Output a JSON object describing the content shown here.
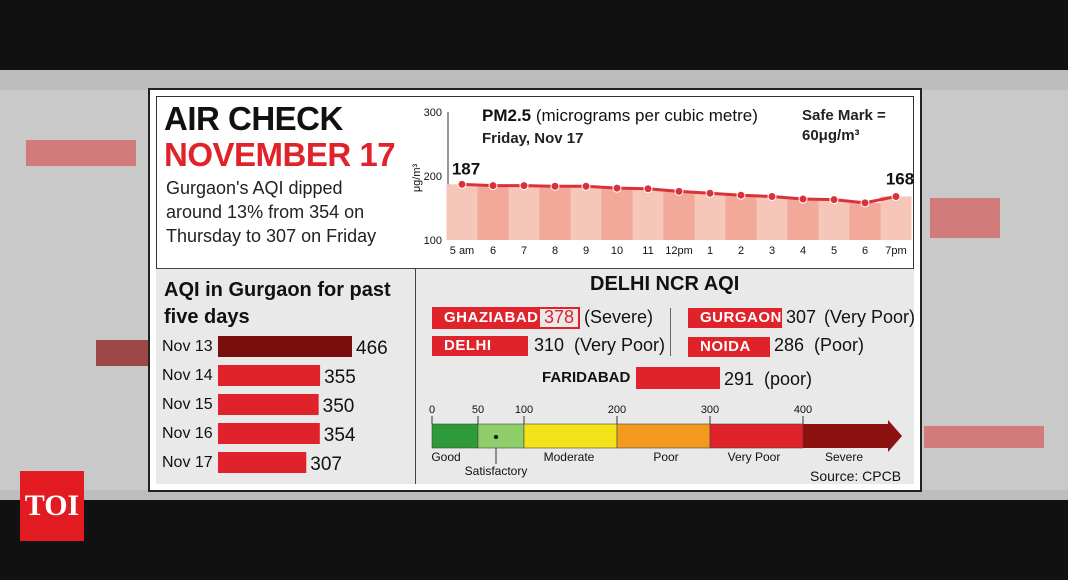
{
  "title_line1": "AIR CHECK",
  "title_line2": "NOVEMBER 17",
  "lead_text": "Gurgaon's AQI dipped around 13% from 354 on Thursday to 307 on Friday",
  "past_title": "AQI in Gurgaon for past five days",
  "pm_title_bold": "PM2.5",
  "pm_title_rest": " (micrograms per cubic metre)",
  "pm_subtitle": "Friday, Nov 17",
  "safe_mark": "Safe Mark = 60μg/m³",
  "ncr_title": "DELHI NCR AQI",
  "source": "Source: CPCB",
  "logo": "TOI",
  "colors": {
    "red": "#e0222a",
    "dark": "#7a0d0d",
    "line": "#d9323a",
    "fillBand": "#f7c6ba"
  },
  "chart_data": [
    {
      "type": "line",
      "title": "PM2.5 (micrograms per cubic metre)",
      "subtitle": "Friday, Nov 17",
      "ylabel": "μg/m³",
      "ylim": [
        100,
        300
      ],
      "yticks": [
        100,
        200,
        300
      ],
      "x": [
        "5 am",
        "6",
        "7",
        "8",
        "9",
        "10",
        "11",
        "12pm",
        "1",
        "2",
        "3",
        "4",
        "5",
        "6",
        "7pm"
      ],
      "values": [
        187,
        185,
        185,
        184,
        184,
        181,
        180,
        176,
        173,
        170,
        168,
        164,
        163,
        158,
        168
      ],
      "labelled_points": [
        {
          "x": "5 am",
          "value_label": "187"
        },
        {
          "x": "7pm",
          "value_label": "168"
        }
      ]
    },
    {
      "type": "bar",
      "title": "AQI in Gurgaon for past five days",
      "categories": [
        "Nov 13",
        "Nov 14",
        "Nov 15",
        "Nov 16",
        "Nov 17"
      ],
      "values": [
        466,
        355,
        350,
        354,
        307
      ]
    }
  ],
  "ncr_cities": [
    {
      "name": "GHAZIABAD",
      "value": "378",
      "status": "(Severe)"
    },
    {
      "name": "DELHI",
      "value": "310",
      "status": "(Very Poor)"
    },
    {
      "name": "GURGAON",
      "value": "307",
      "status": "(Very Poor)"
    },
    {
      "name": "NOIDA",
      "value": "286",
      "status": "(Poor)"
    },
    {
      "name": "FARIDABAD",
      "value": "291",
      "status": "(poor)"
    }
  ],
  "scale": {
    "ticks": [
      "0",
      "50",
      "100",
      "200",
      "300",
      "400"
    ],
    "bands": [
      {
        "label": "Good",
        "color": "#2e9a3a"
      },
      {
        "label": "Satisfactory",
        "color": "#8fcf6a"
      },
      {
        "label": "Moderate",
        "color": "#f5e31a"
      },
      {
        "label": "Poor",
        "color": "#f39a1e"
      },
      {
        "label": "Very Poor",
        "color": "#e0222a"
      },
      {
        "label": "Severe",
        "color": "#8b1010"
      }
    ]
  }
}
